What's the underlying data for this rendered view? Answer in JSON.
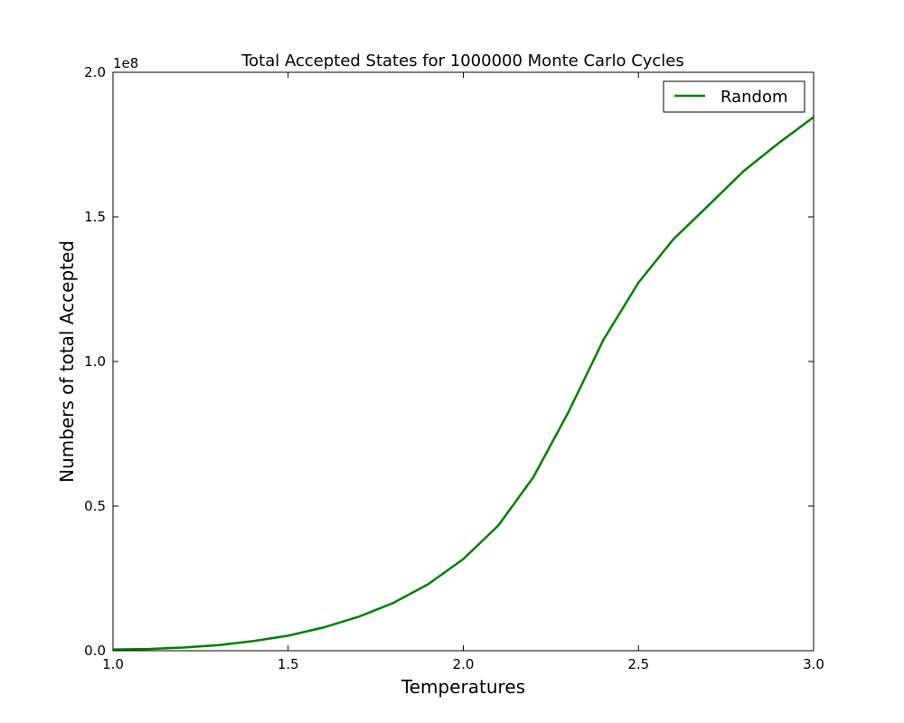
{
  "chart_data": {
    "type": "line",
    "title": "Total Accepted States for 1000000 Monte Carlo Cycles",
    "xlabel": "Temperatures",
    "ylabel": "Numbers of total Accepted",
    "y_offset_label": "1e8",
    "xlim": [
      1.0,
      3.0
    ],
    "ylim": [
      0,
      200000000
    ],
    "x_ticks": [
      1.0,
      1.5,
      2.0,
      2.5,
      3.0
    ],
    "x_tick_labels": [
      "1.0",
      "1.5",
      "2.0",
      "2.5",
      "3.0"
    ],
    "y_ticks": [
      0,
      50000000,
      100000000,
      150000000,
      200000000
    ],
    "y_tick_labels": [
      "0.0",
      "0.5",
      "1.0",
      "1.5",
      "2.0"
    ],
    "grid": false,
    "legend_position": "top-right",
    "series": [
      {
        "name": "Random",
        "color": "#008000",
        "x": [
          1.0,
          1.1,
          1.2,
          1.3,
          1.4,
          1.5,
          1.6,
          1.7,
          1.8,
          1.9,
          2.0,
          2.1,
          2.2,
          2.3,
          2.4,
          2.5,
          2.6,
          2.7,
          2.8,
          2.9,
          3.0
        ],
        "y": [
          400000,
          600000,
          1100000,
          1900000,
          3300000,
          5200000,
          8000000,
          11700000,
          16500000,
          23000000,
          31700000,
          43300000,
          60000000,
          82500000,
          107500000,
          127300000,
          142300000,
          154000000,
          165800000,
          175500000,
          184500000
        ]
      }
    ]
  }
}
